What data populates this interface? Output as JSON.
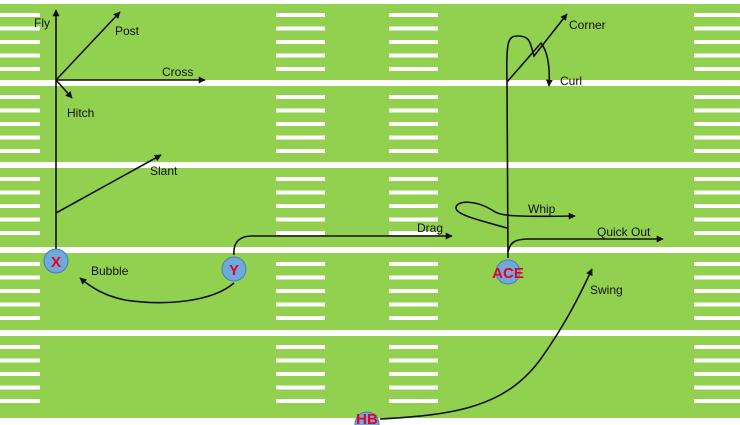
{
  "field": {
    "turf_color": "#92d050",
    "line_color": "#ffffff"
  },
  "players": [
    {
      "id": "x",
      "label": "X"
    },
    {
      "id": "y",
      "label": "Y"
    },
    {
      "id": "ace",
      "label": "ACE"
    },
    {
      "id": "hb",
      "label": "HB"
    }
  ],
  "player_style": {
    "fill": "#6fa8dc",
    "text_color": "#e8001c"
  },
  "routes": {
    "fly": "Fly",
    "post": "Post",
    "cross": "Cross",
    "hitch": "Hitch",
    "slant": "Slant",
    "bubble": "Bubble",
    "drag": "Drag",
    "corner": "Corner",
    "curl": "Curl",
    "whip": "Whip",
    "quick_out": "Quick Out",
    "swing": "Swing"
  }
}
